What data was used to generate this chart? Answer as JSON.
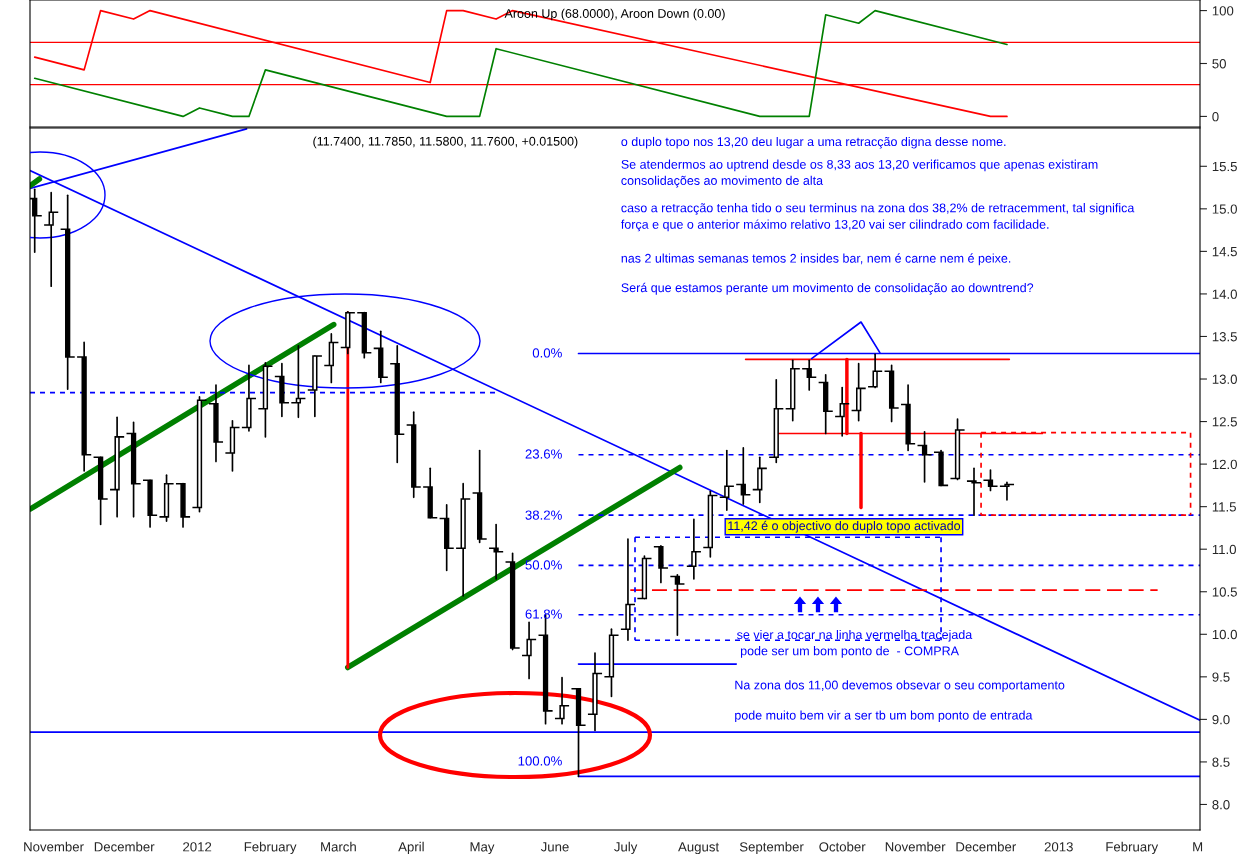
{
  "chart_data": [
    {
      "type": "line",
      "title": "Aroon Up (68.0000), Aroon Down (0.00)",
      "tick_labels": "y",
      "xlim": [
        "2011-10-22",
        "2013-03-02"
      ],
      "ylim": [
        -10,
        110
      ],
      "yticks": [
        0,
        50,
        100
      ],
      "ref_lines": [
        {
          "axis": "y",
          "value": 70,
          "color": "#ff0000"
        },
        {
          "axis": "y",
          "value": 30,
          "color": "#ff0000"
        }
      ],
      "series": [
        {
          "type": "line",
          "color": "#ff0000",
          "x": [
            "2011-10-24",
            "2011-11-14",
            "2011-11-21",
            "2011-12-05",
            "2011-12-12",
            "2012-04-09",
            "2012-04-16",
            "2012-04-23",
            "2012-05-07",
            "2012-05-14",
            "2012-12-03",
            "2012-12-10"
          ],
          "values": [
            56,
            44,
            100,
            92,
            100,
            32,
            100,
            100,
            92,
            100,
            0,
            0
          ]
        },
        {
          "type": "line",
          "color": "#008000",
          "x": [
            "2011-10-24",
            "2011-12-26",
            "2012-01-02",
            "2012-01-16",
            "2012-01-23",
            "2012-01-30",
            "2012-04-16",
            "2012-04-30",
            "2012-05-07",
            "2012-08-27",
            "2012-09-17",
            "2012-09-24",
            "2012-10-08",
            "2012-10-15",
            "2012-12-10"
          ],
          "values": [
            36,
            0,
            8,
            0,
            0,
            44,
            0,
            0,
            64,
            0,
            0,
            96,
            88,
            100,
            68
          ]
        }
      ]
    },
    {
      "type": "candlestick",
      "title": "(11.7400, 11.7850, 11.5800, 11.7600, +0.01500)",
      "xlim": [
        "2011-10-22",
        "2013-03-02"
      ],
      "ylim": [
        7.7,
        15.95
      ],
      "yticks": [
        {
          "value": 8,
          "label": "8.0"
        },
        8.5,
        {
          "value": 9,
          "label": "9.0"
        },
        9.5,
        {
          "value": 10,
          "label": "10.0"
        },
        10.5,
        {
          "value": 11,
          "label": "11.0"
        },
        11.5,
        {
          "value": 12,
          "label": "12.0"
        },
        12.5,
        {
          "value": 13,
          "label": "13.0"
        },
        13.5,
        {
          "value": 14,
          "label": "14.0"
        },
        14.5,
        {
          "value": 15,
          "label": "15.0"
        },
        15.5
      ],
      "xticks": [
        {
          "value": "2011-11-01",
          "label": "November"
        },
        {
          "value": "2011-12-01",
          "label": "December"
        },
        {
          "value": "2012-01-01",
          "label": "2012"
        },
        {
          "value": "2012-02-01",
          "label": "February"
        },
        {
          "value": "2012-03-01",
          "label": "March"
        },
        {
          "value": "2012-04-01",
          "label": "April"
        },
        {
          "value": "2012-05-01",
          "label": "May"
        },
        {
          "value": "2012-06-01",
          "label": "June"
        },
        {
          "value": "2012-07-01",
          "label": "July"
        },
        {
          "value": "2012-08-01",
          "label": "August"
        },
        {
          "value": "2012-09-01",
          "label": "September"
        },
        {
          "value": "2012-10-01",
          "label": "October"
        },
        {
          "value": "2012-11-01",
          "label": "November"
        },
        {
          "value": "2012-12-01",
          "label": "December"
        },
        {
          "value": "2013-01-01",
          "label": "2013"
        },
        {
          "value": "2013-02-01",
          "label": "February"
        },
        {
          "value": "2013-03-01",
          "label": "M"
        }
      ],
      "x": [
        "2011-10-24",
        "2011-10-31",
        "2011-11-07",
        "2011-11-14",
        "2011-11-21",
        "2011-11-28",
        "2011-12-05",
        "2011-12-12",
        "2011-12-19",
        "2011-12-26",
        "2012-01-02",
        "2012-01-09",
        "2012-01-16",
        "2012-01-23",
        "2012-01-30",
        "2012-02-06",
        "2012-02-13",
        "2012-02-20",
        "2012-02-27",
        "2012-03-05",
        "2012-03-12",
        "2012-03-19",
        "2012-03-26",
        "2012-04-02",
        "2012-04-09",
        "2012-04-16",
        "2012-04-23",
        "2012-04-30",
        "2012-05-07",
        "2012-05-14",
        "2012-05-21",
        "2012-05-28",
        "2012-06-04",
        "2012-06-11",
        "2012-06-18",
        "2012-06-25",
        "2012-07-02",
        "2012-07-09",
        "2012-07-16",
        "2012-07-23",
        "2012-07-30",
        "2012-08-06",
        "2012-08-13",
        "2012-08-20",
        "2012-08-27",
        "2012-09-03",
        "2012-09-10",
        "2012-09-17",
        "2012-09-24",
        "2012-10-01",
        "2012-10-08",
        "2012-10-15",
        "2012-10-22",
        "2012-10-29",
        "2012-11-05",
        "2012-11-12",
        "2012-11-19",
        "2012-11-26",
        "2012-12-03",
        "2012-12-10"
      ],
      "ohlc": [
        [
          15.12,
          15.23,
          14.49,
          14.92
        ],
        [
          14.81,
          15.19,
          14.09,
          14.96
        ],
        [
          14.76,
          15.16,
          12.88,
          13.26
        ],
        [
          13.26,
          13.43,
          11.92,
          12.11
        ],
        [
          12.08,
          12.08,
          11.29,
          11.59
        ],
        [
          11.7,
          12.55,
          11.38,
          12.32
        ],
        [
          12.36,
          12.49,
          11.38,
          11.77
        ],
        [
          11.81,
          11.81,
          11.26,
          11.4
        ],
        [
          11.38,
          11.87,
          11.33,
          11.77
        ],
        [
          11.77,
          11.77,
          11.26,
          11.38
        ],
        [
          11.49,
          12.79,
          11.44,
          12.75
        ],
        [
          12.71,
          12.93,
          12.03,
          12.26
        ],
        [
          12.13,
          12.51,
          11.92,
          12.43
        ],
        [
          12.43,
          13.16,
          12.39,
          12.77
        ],
        [
          12.65,
          13.19,
          12.32,
          13.15
        ],
        [
          13.03,
          13.18,
          12.56,
          12.72
        ],
        [
          12.72,
          13.39,
          12.55,
          12.77
        ],
        [
          12.87,
          13.27,
          12.56,
          13.27
        ],
        [
          13.16,
          13.53,
          12.96,
          13.43
        ],
        [
          13.37,
          13.79,
          13.3,
          13.78
        ],
        [
          13.78,
          13.78,
          13.25,
          13.31
        ],
        [
          13.36,
          13.56,
          12.96,
          13.02
        ],
        [
          13.18,
          13.39,
          12.02,
          12.35
        ],
        [
          12.46,
          12.61,
          11.61,
          11.73
        ],
        [
          11.73,
          11.95,
          11.37,
          11.37
        ],
        [
          11.36,
          11.52,
          10.75,
          11.01
        ],
        [
          11.01,
          11.77,
          10.45,
          11.59
        ],
        [
          11.66,
          12.16,
          11.08,
          11.12
        ],
        [
          11.01,
          11.29,
          10.65,
          10.97
        ],
        [
          10.85,
          10.95,
          9.82,
          9.84
        ],
        [
          9.75,
          10.14,
          9.48,
          9.94
        ],
        [
          9.99,
          10.23,
          8.95,
          9.1
        ],
        [
          9.01,
          9.49,
          8.95,
          9.16
        ],
        [
          9.36,
          9.36,
          8.33,
          8.93
        ],
        [
          9.06,
          9.78,
          8.87,
          9.54
        ],
        [
          9.5,
          10.06,
          9.27,
          9.99
        ],
        [
          10.06,
          11.12,
          9.93,
          10.35
        ],
        [
          10.42,
          10.92,
          10.42,
          10.89
        ],
        [
          11.03,
          11.04,
          10.61,
          10.78
        ],
        [
          10.68,
          10.7,
          9.99,
          10.59
        ],
        [
          10.8,
          11.35,
          10.65,
          10.97
        ],
        [
          11.02,
          11.68,
          10.91,
          11.63
        ],
        [
          11.61,
          12.16,
          11.46,
          11.74
        ],
        [
          11.76,
          12.19,
          11.53,
          11.64
        ],
        [
          11.7,
          12.08,
          11.55,
          11.95
        ],
        [
          12.08,
          12.99,
          12.02,
          12.65
        ],
        [
          12.65,
          13.22,
          12.51,
          13.12
        ],
        [
          13.12,
          13.22,
          12.87,
          13.02
        ],
        [
          12.96,
          13.05,
          12.36,
          12.62
        ],
        [
          12.56,
          12.9,
          12.33,
          12.71
        ],
        [
          12.63,
          13.18,
          12.51,
          12.89
        ],
        [
          12.91,
          13.29,
          12.9,
          13.09
        ],
        [
          13.09,
          13.16,
          12.5,
          12.66
        ],
        [
          12.7,
          12.93,
          12.16,
          12.24
        ],
        [
          12.22,
          12.38,
          11.79,
          12.11
        ],
        [
          12.14,
          12.16,
          11.75,
          11.75
        ],
        [
          11.83,
          12.53,
          11.82,
          12.4
        ],
        [
          11.8,
          11.95,
          11.4,
          11.78
        ],
        [
          11.81,
          11.93,
          11.69,
          11.74
        ],
        [
          11.74,
          11.785,
          11.58,
          11.76
        ]
      ],
      "series": [
        {
          "type": "line",
          "color": "#0000ff",
          "x": [
            "2011-10-22",
            "2012-01-22"
          ],
          "values": [
            15.24,
            15.94
          ]
        },
        {
          "type": "line",
          "color": "#0000ff",
          "x": [
            "2011-10-22",
            "2013-03-02"
          ],
          "values": [
            15.45,
            8.99
          ]
        },
        {
          "type": "line",
          "color": "#008000",
          "x": [
            "2011-10-22",
            "2011-10-26"
          ],
          "values": [
            15.27,
            15.35
          ]
        },
        {
          "type": "line",
          "color": "#008000",
          "x": [
            "2011-10-22",
            "2012-02-28"
          ],
          "values": [
            11.47,
            13.64
          ]
        },
        {
          "type": "line",
          "color": "#008000",
          "x": [
            "2012-03-05",
            "2012-07-24"
          ],
          "values": [
            9.61,
            11.96
          ]
        },
        {
          "type": "line",
          "color": "#ff0000",
          "x": [
            "2012-03-05",
            "2012-03-05"
          ],
          "values": [
            13.78,
            9.61
          ]
        },
        {
          "type": "line",
          "color": "#0000ff",
          "line_style": "dotted",
          "x": [
            "2011-10-22",
            "2012-05-07"
          ],
          "values": [
            12.84,
            12.84
          ]
        },
        {
          "type": "line",
          "color": "#0000ff",
          "x": [
            "2012-06-11",
            "2013-03-02"
          ],
          "values": [
            13.3,
            13.3
          ]
        },
        {
          "type": "line",
          "color": "#0000ff",
          "line_style": "dotted",
          "x": [
            "2012-06-11",
            "2013-03-02"
          ],
          "values": [
            12.11,
            12.11
          ]
        },
        {
          "type": "line",
          "color": "#0000ff",
          "line_style": "dotted",
          "x": [
            "2012-06-11",
            "2013-03-02"
          ],
          "values": [
            11.4,
            11.4
          ]
        },
        {
          "type": "line",
          "color": "#0000ff",
          "line_style": "dotted",
          "x": [
            "2012-06-11",
            "2013-03-02"
          ],
          "values": [
            10.81,
            10.81
          ]
        },
        {
          "type": "line",
          "color": "#0000ff",
          "line_style": "dotted",
          "x": [
            "2012-06-11",
            "2013-03-02"
          ],
          "values": [
            10.23,
            10.23
          ]
        },
        {
          "type": "line",
          "color": "#0000ff",
          "x": [
            "2012-06-11",
            "2013-03-02"
          ],
          "values": [
            8.33,
            8.33
          ]
        },
        {
          "type": "line",
          "color": "#0000ff",
          "x": [
            "2011-10-22",
            "2013-03-02"
          ],
          "values": [
            8.85,
            8.85
          ]
        },
        {
          "type": "line",
          "color": "#0000ff",
          "x": [
            "2012-06-11",
            "2012-08-17"
          ],
          "values": [
            9.65,
            9.65
          ]
        },
        {
          "type": "line",
          "color": "#ff0000",
          "line_style": "dashed",
          "x": [
            "2012-07-03",
            "2013-02-12"
          ],
          "values": [
            10.52,
            10.52
          ]
        },
        {
          "type": "line",
          "color": "#0000ff",
          "line_style": "dotted",
          "x": [
            "2012-07-05",
            "2012-11-12"
          ],
          "values": [
            11.14,
            11.14
          ]
        },
        {
          "type": "line",
          "color": "#0000ff",
          "line_style": "dotted",
          "x": [
            "2012-07-05",
            "2012-11-12"
          ],
          "values": [
            9.93,
            9.93
          ]
        },
        {
          "type": "line",
          "color": "#0000ff",
          "line_style": "dotted",
          "x": [
            "2012-07-05",
            "2012-07-05"
          ],
          "values": [
            11.14,
            9.93
          ]
        },
        {
          "type": "line",
          "color": "#0000ff",
          "line_style": "dotted",
          "x": [
            "2012-11-12",
            "2012-11-12"
          ],
          "values": [
            11.14,
            9.93
          ]
        },
        {
          "type": "line",
          "color": "#ff0000",
          "x": [
            "2012-08-21",
            "2012-12-11"
          ],
          "values": [
            13.23,
            13.23
          ]
        },
        {
          "type": "line",
          "color": "#ff0000",
          "x": [
            "2012-09-03",
            "2012-12-25"
          ],
          "values": [
            12.36,
            12.36
          ]
        },
        {
          "type": "line",
          "color": "#ff0000",
          "x": [
            "2012-10-03",
            "2012-10-03"
          ],
          "values": [
            13.23,
            12.36
          ]
        },
        {
          "type": "line",
          "color": "#ff0000",
          "x": [
            "2012-10-09",
            "2012-10-09"
          ],
          "values": [
            12.36,
            11.49
          ]
        },
        {
          "type": "line",
          "color": "#0000ff",
          "x": [
            "2012-09-18",
            "2012-10-09",
            "2012-10-17"
          ],
          "values": [
            13.24,
            13.67,
            13.31
          ]
        },
        {
          "type": "line",
          "color": "#ff0000",
          "line_style": "dotted",
          "x": [
            "2012-11-29",
            "2013-02-26"
          ],
          "values": [
            12.37,
            12.37
          ]
        },
        {
          "type": "line",
          "color": "#ff0000",
          "line_style": "dotted",
          "x": [
            "2012-11-29",
            "2013-02-26"
          ],
          "values": [
            11.4,
            11.4
          ]
        },
        {
          "type": "line",
          "color": "#ff0000",
          "line_style": "dotted",
          "x": [
            "2012-11-29",
            "2012-11-29"
          ],
          "values": [
            12.37,
            11.4
          ]
        },
        {
          "type": "line",
          "color": "#ff0000",
          "line_style": "dotted",
          "x": [
            "2013-02-26",
            "2013-02-26"
          ],
          "values": [
            12.37,
            11.4
          ]
        }
      ],
      "annotations": [
        "o duplo topo nos 13,20 deu lugar a uma retracção digna desse nome.",
        "Se atendermos ao uptrend desde os 8,33 aos 13,20 verificamos que apenas existiram\nconsolidações ao movimento de alta",
        "caso a retracção tenha tido o seu terminus na zona dos 38,2% de retracemment, tal significa\nforça e que o anterior máximo relativo 13,20 vai ser cilindrado com facilidade.",
        "nas 2 ultimas semanas temos 2 insides bar, nem é carne nem é peixe.",
        "Será que estamos perante um movimento de consolidação ao downtrend?",
        "11,42 é o objectivo do duplo topo activado",
        "se vier a tocar na linha vermelha tracejada\n pode ser um bom ponto de  - COMPRA",
        "Na zona dos 11,00 devemos obsevar o seu comportamento",
        "pode muito bem vir a ser tb um bom ponto de entrada",
        "0.0%",
        "23.6%",
        "38.2%",
        "50.0%",
        "61.8%",
        "100.0%"
      ]
    }
  ]
}
